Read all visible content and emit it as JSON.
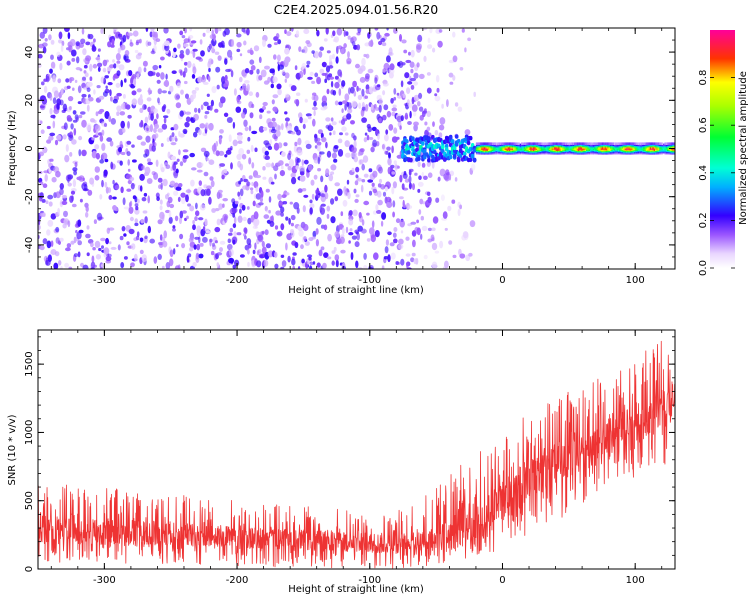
{
  "figure_title": "C2E4.2025.094.01.56.R20",
  "colors": {
    "snr_trace": "#ee3333",
    "spectrogram_noise": "#7a2be6",
    "colormap": [
      "#ffffff",
      "#e9d6ff",
      "#9a55ff",
      "#3300ff",
      "#00d4ff",
      "#00ff44",
      "#ffff00",
      "#ff3300",
      "#ff00aa"
    ]
  },
  "chart_data": [
    {
      "type": "heatmap",
      "title": "",
      "xlabel": "Height of straight line (km)",
      "ylabel": "Frequency (Hz)",
      "xlim": [
        -350,
        130
      ],
      "ylim": [
        -50,
        50
      ],
      "x_ticks": [
        -300,
        -200,
        -100,
        0,
        100
      ],
      "y_ticks": [
        -40,
        -20,
        0,
        20,
        40
      ],
      "x_tick_labels": [
        "-300",
        "-200",
        "-100",
        "0",
        "100"
      ],
      "y_tick_labels": [
        "-40",
        "-20",
        "0",
        "20",
        "40"
      ],
      "grid": false,
      "legend": "colorbar-right",
      "colorbar": {
        "label": "Normalized spectral amplitude",
        "range": [
          0.0,
          1.0
        ],
        "ticks": [
          0.0,
          0.2,
          0.4,
          0.6,
          0.8
        ],
        "tick_labels": [
          "0.0",
          "0.2",
          "0.4",
          "0.6",
          "0.8"
        ]
      },
      "regions": [
        {
          "x_range": [
            -350,
            -75
          ],
          "freq_range": [
            -50,
            50
          ],
          "amplitude": 0.1,
          "description": "broadband noise"
        },
        {
          "x_range": [
            -75,
            -20
          ],
          "freq_range": [
            -5,
            5
          ],
          "amplitude_range": [
            0.2,
            0.5
          ],
          "description": "signal onset"
        },
        {
          "x_range": [
            -20,
            130
          ],
          "center_frequency": 0,
          "freq_halfwidth": 3,
          "peak_amplitude": 0.95,
          "description": "narrow carrier line"
        }
      ]
    },
    {
      "type": "line",
      "title": "",
      "xlabel": "Height of straight line (km)",
      "ylabel": "SNR (10 * v/v)",
      "xlim": [
        -350,
        130
      ],
      "ylim": [
        0,
        1750
      ],
      "x_ticks": [
        -300,
        -200,
        -100,
        0,
        100
      ],
      "y_ticks": [
        0,
        500,
        1000,
        1500
      ],
      "x_tick_labels": [
        "-300",
        "-200",
        "-100",
        "0",
        "100"
      ],
      "y_tick_labels": [
        "0",
        "500",
        "1000",
        "1500"
      ],
      "grid": false,
      "series": [
        {
          "color": "#ee3333",
          "x": [
            -350,
            -300,
            -250,
            -200,
            -150,
            -100,
            -75,
            -50,
            -25,
            -10,
            0,
            25,
            50,
            75,
            100,
            130
          ],
          "y_mean": [
            290,
            270,
            250,
            230,
            210,
            190,
            190,
            230,
            290,
            370,
            500,
            700,
            820,
            930,
            1040,
            1250
          ],
          "y_min": [
            50,
            40,
            30,
            20,
            10,
            5,
            5,
            30,
            80,
            110,
            150,
            250,
            400,
            600,
            650,
            800
          ],
          "y_max": [
            630,
            600,
            560,
            500,
            460,
            420,
            440,
            600,
            820,
            940,
            1020,
            1170,
            1300,
            1420,
            1570,
            1720
          ]
        }
      ]
    }
  ]
}
